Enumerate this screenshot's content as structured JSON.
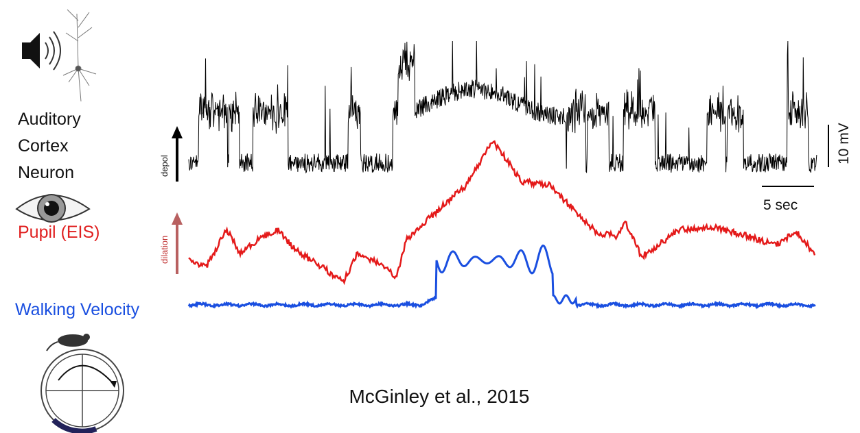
{
  "labels": {
    "neuron": [
      "Auditory",
      "Cortex",
      "Neuron"
    ],
    "pupil": "Pupil (EIS)",
    "walking": "Walking Velocity"
  },
  "axis_labels": {
    "depol": "depol",
    "dilation": "dilation"
  },
  "scale_bars": {
    "voltage": "10 mV",
    "time": "5 sec"
  },
  "citation": "McGinley et al., 2015"
}
